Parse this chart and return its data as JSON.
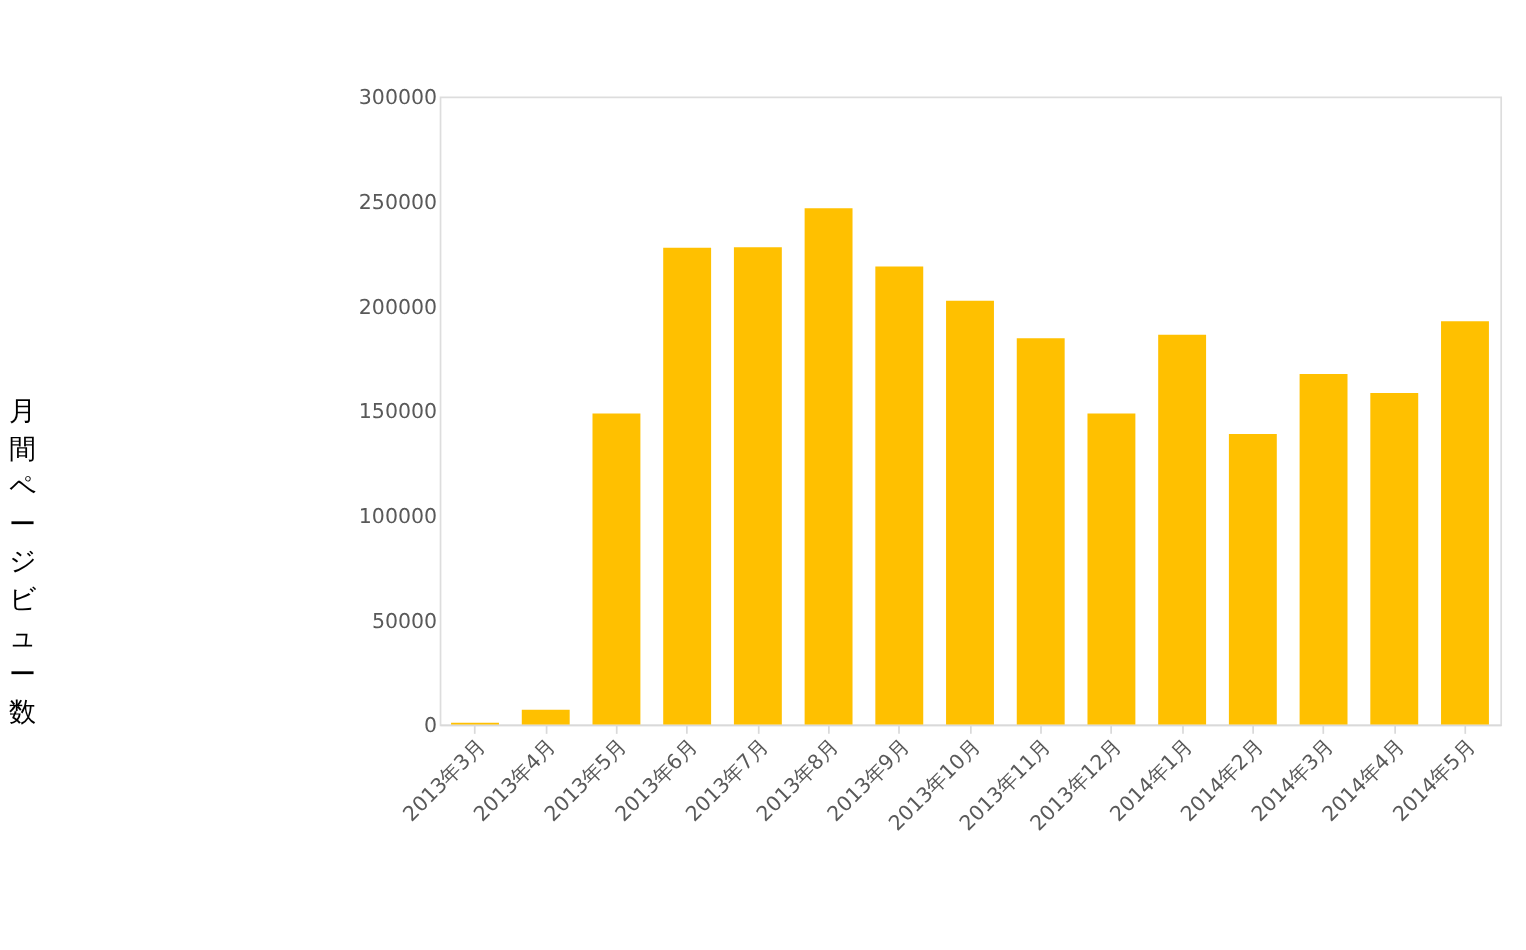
{
  "chart_data": {
    "type": "bar",
    "ylabel": "月間ページビュー数",
    "categories": [
      "2013年3月",
      "2013年4月",
      "2013年5月",
      "2013年6月",
      "2013年7月",
      "2013年8月",
      "2013年9月",
      "2013年10月",
      "2013年11月",
      "2013年12月",
      "2014年1月",
      "2014年2月",
      "2014年3月",
      "2014年4月",
      "2014年5月"
    ],
    "values": [
      800,
      7000,
      148600,
      227800,
      228000,
      246600,
      218800,
      202500,
      184500,
      148600,
      186200,
      138800,
      167400,
      158400,
      192700
    ],
    "color": "#ffc000",
    "ylim": [
      0,
      300000
    ],
    "yticks": [
      0,
      50000,
      100000,
      150000,
      200000,
      250000,
      300000
    ],
    "grid": false
  }
}
